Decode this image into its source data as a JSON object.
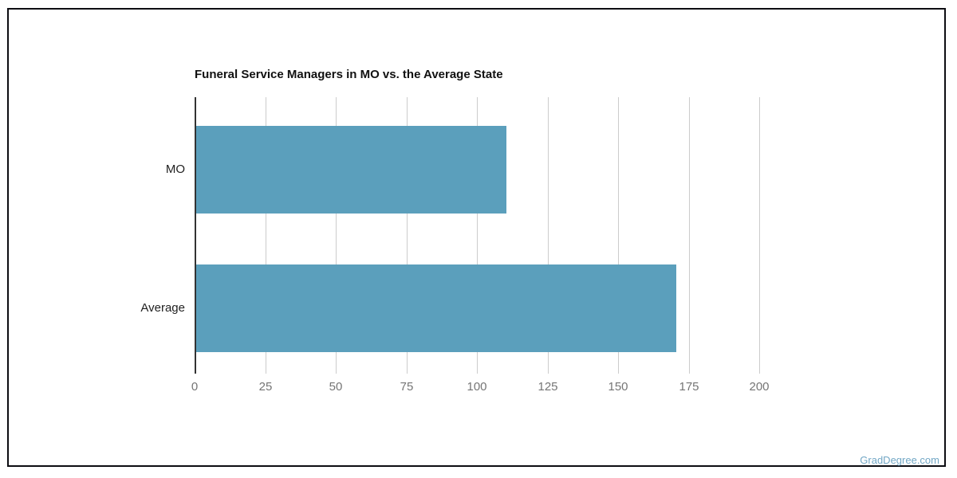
{
  "page": {
    "watermark": "GradDegree.com"
  },
  "chart_data": {
    "type": "bar",
    "orientation": "horizontal",
    "title": "Funeral Service Managers in MO vs. the Average State",
    "categories": [
      "MO",
      "Average"
    ],
    "values": [
      110,
      170
    ],
    "xlabel": "",
    "ylabel": "",
    "xlim": [
      0,
      200
    ],
    "xticks": [
      0,
      25,
      50,
      75,
      100,
      125,
      150,
      175,
      200
    ],
    "grid": true,
    "legend": "none",
    "colors": {
      "bar": "#5B9FBC",
      "axis_line": "#333333",
      "gridline": "#cccccc",
      "tick_label": "#757575",
      "category_label": "#212121",
      "title": "#111111",
      "watermark": "#72A7C5",
      "frame_border": "#0d0d12"
    }
  }
}
